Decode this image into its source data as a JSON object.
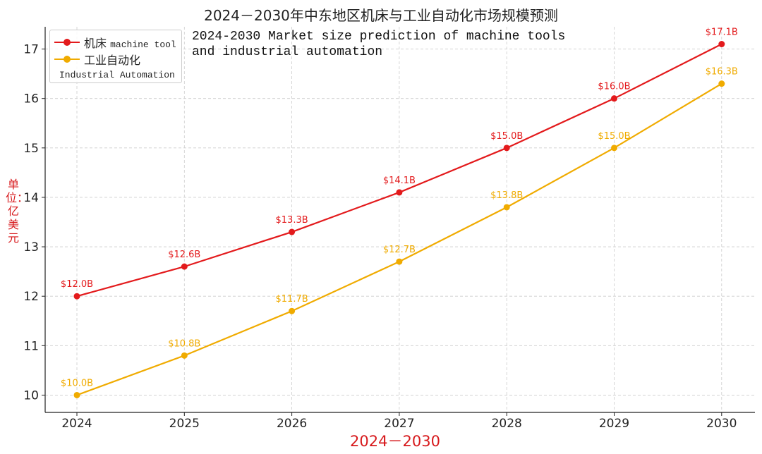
{
  "chart_data": {
    "type": "line",
    "title": "2024－2030年中东地区机床与工业自动化市场规模预测",
    "annotation": [
      "2024-2030 Market size prediction of machine tools",
      "and industrial automation"
    ],
    "xlabel": "2024－2030",
    "ylabel": "单位：亿美元",
    "categories": [
      "2024",
      "2025",
      "2026",
      "2027",
      "2028",
      "2029",
      "2030"
    ],
    "ylim": [
      9.65,
      17.45
    ],
    "yticks": [
      10,
      11,
      12,
      13,
      14,
      15,
      16,
      17
    ],
    "grid": true,
    "legend_position": "top-left",
    "series": [
      {
        "name": "机床",
        "name_en": "machine tool",
        "color": "#e31a1c",
        "values": [
          12.0,
          12.6,
          13.3,
          14.1,
          15.0,
          16.0,
          17.1
        ],
        "labels": [
          "$12.0B",
          "$12.6B",
          "$13.3B",
          "$14.1B",
          "$15.0B",
          "$16.0B",
          "$17.1B"
        ]
      },
      {
        "name": "工业自动化",
        "name_en": "Industrial Automation",
        "color": "#f0ab00",
        "values": [
          10.0,
          10.8,
          11.7,
          12.7,
          13.8,
          15.0,
          16.3
        ],
        "labels": [
          "$10.0B",
          "$10.8B",
          "$11.7B",
          "$12.7B",
          "$13.8B",
          "$15.0B",
          "$16.3B"
        ]
      }
    ]
  }
}
